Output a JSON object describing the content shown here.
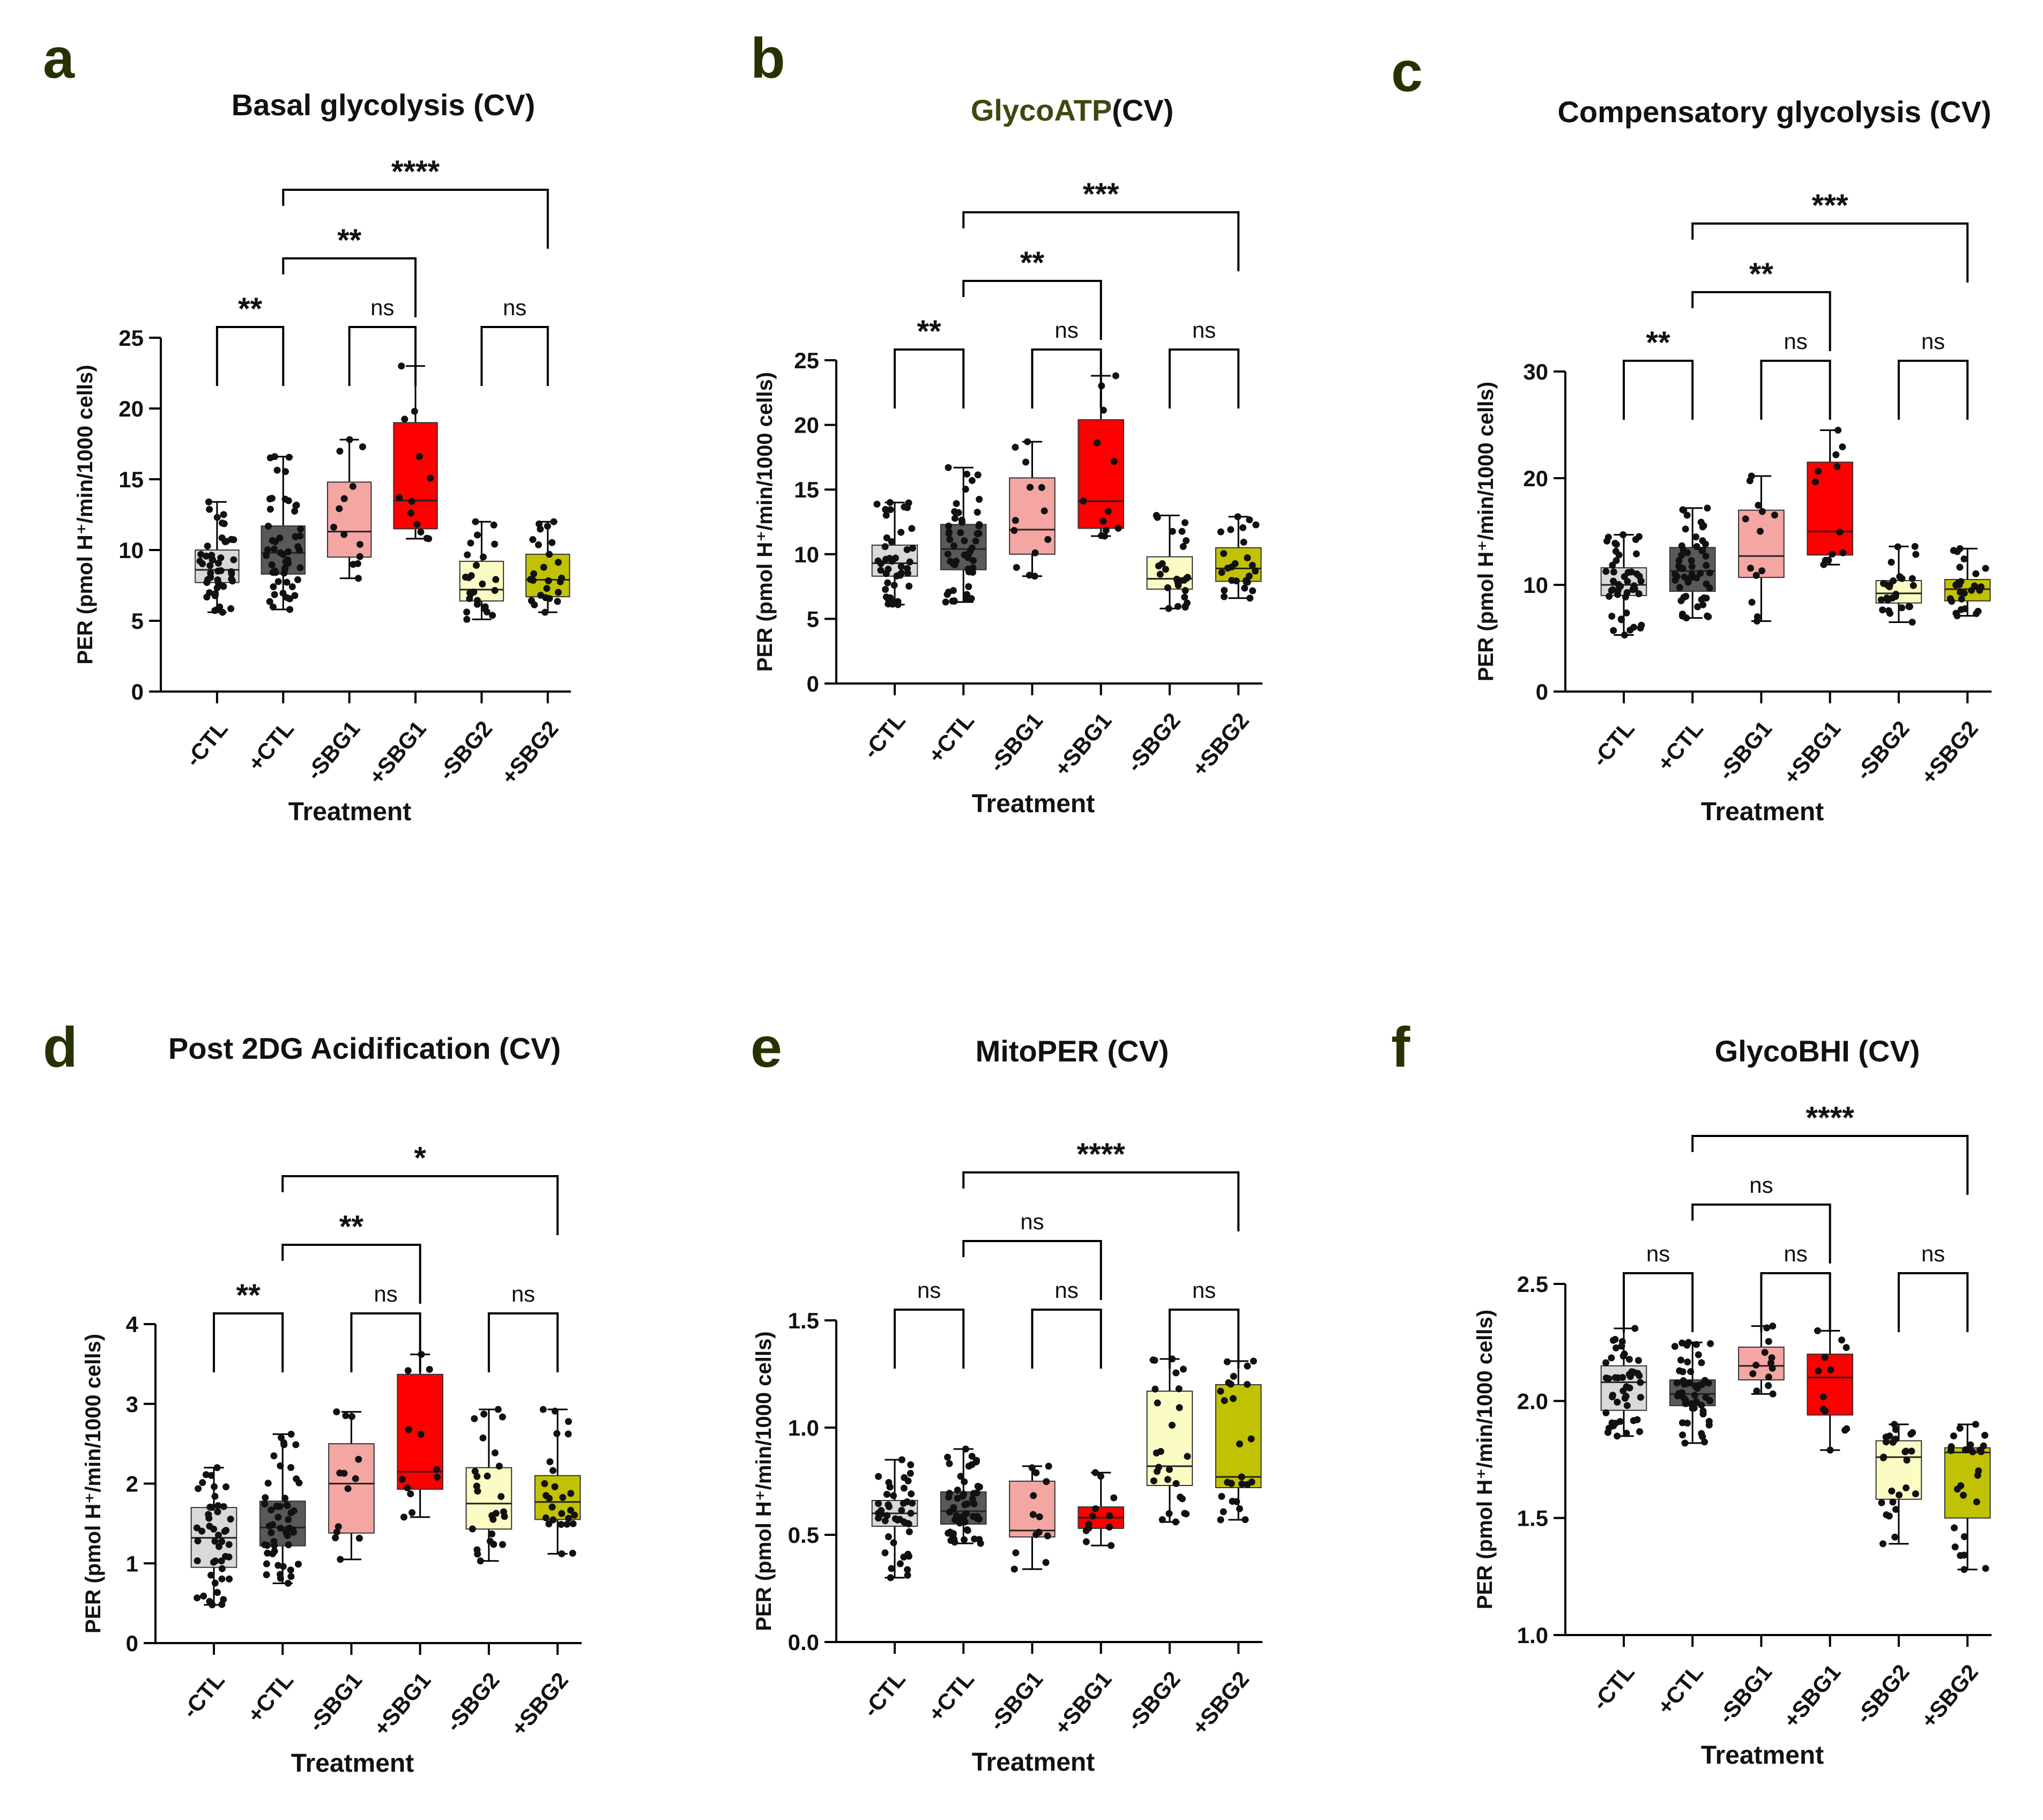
{
  "figure": {
    "categories": [
      "-CTL",
      "+CTL",
      "-SBG1",
      "+SBG1",
      "-SBG2",
      "+SBG2"
    ],
    "box_colors": [
      "#d9d9d9",
      "#595959",
      "#f4a6a3",
      "#ff0000",
      "#fbfbc4",
      "#c2c204"
    ],
    "dot_color": "#111111",
    "line_color": "#000000",
    "title_accent_color": "#3b4a10",
    "dot_counts": [
      46,
      52,
      13,
      12,
      26,
      26
    ]
  },
  "chart_data": [
    {
      "type": "box",
      "panel_label": "a",
      "title": "Basal glycolysis (CV)",
      "title_accent": "",
      "xlabel": "Treatment",
      "ylabel": "PER (pmol H⁺/min/1000 cells)",
      "ylim": [
        0,
        25
      ],
      "yticks": [
        0,
        5,
        10,
        15,
        20,
        25
      ],
      "ytick_labels": [
        "0",
        "5",
        "10",
        "15",
        "20",
        "25"
      ],
      "boxes": [
        {
          "category": "-CTL",
          "min": 5.6,
          "q1": 7.7,
          "median": 8.6,
          "q3": 10.0,
          "max": 13.4
        },
        {
          "category": "+CTL",
          "min": 5.8,
          "q1": 8.3,
          "median": 9.8,
          "q3": 11.7,
          "max": 16.6
        },
        {
          "category": "-SBG1",
          "min": 8.0,
          "q1": 9.5,
          "median": 11.3,
          "q3": 14.8,
          "max": 17.8
        },
        {
          "category": "+SBG1",
          "min": 10.8,
          "q1": 11.5,
          "median": 13.5,
          "q3": 19.0,
          "max": 23.0
        },
        {
          "category": "-SBG2",
          "min": 5.1,
          "q1": 6.4,
          "median": 7.2,
          "q3": 9.2,
          "max": 12.0
        },
        {
          "category": "+SBG2",
          "min": 5.6,
          "q1": 6.7,
          "median": 7.9,
          "q3": 9.7,
          "max": 12.0
        }
      ],
      "comparisons": [
        {
          "from": "-CTL",
          "to": "+CTL",
          "label": "**"
        },
        {
          "from": "-SBG1",
          "to": "+SBG1",
          "label": "ns"
        },
        {
          "from": "-SBG2",
          "to": "+SBG2",
          "label": "ns"
        },
        {
          "from": "+CTL",
          "to": "+SBG1",
          "label": "**"
        },
        {
          "from": "+CTL",
          "to": "+SBG2",
          "label": "****"
        }
      ]
    },
    {
      "type": "box",
      "panel_label": "b",
      "title": "(CV)",
      "title_accent": "GlycoATP",
      "xlabel": "Treatment",
      "ylabel": "PER (pmol H⁺/min/1000 cells)",
      "ylim": [
        0,
        25
      ],
      "yticks": [
        0,
        5,
        10,
        15,
        20,
        25
      ],
      "ytick_labels": [
        "0",
        "5",
        "10",
        "15",
        "20",
        "25"
      ],
      "boxes": [
        {
          "category": "-CTL",
          "min": 6.1,
          "q1": 8.3,
          "median": 9.3,
          "q3": 10.7,
          "max": 14.0
        },
        {
          "category": "+CTL",
          "min": 6.3,
          "q1": 8.8,
          "median": 10.4,
          "q3": 12.3,
          "max": 16.7
        },
        {
          "category": "-SBG1",
          "min": 8.3,
          "q1": 10.0,
          "median": 11.9,
          "q3": 15.9,
          "max": 18.7
        },
        {
          "category": "+SBG1",
          "min": 11.4,
          "q1": 12.0,
          "median": 14.1,
          "q3": 20.4,
          "max": 23.8
        },
        {
          "category": "-SBG2",
          "min": 5.8,
          "q1": 7.3,
          "median": 8.1,
          "q3": 9.8,
          "max": 13.0
        },
        {
          "category": "+SBG2",
          "min": 6.6,
          "q1": 7.9,
          "median": 8.9,
          "q3": 10.5,
          "max": 12.9
        }
      ],
      "comparisons": [
        {
          "from": "-CTL",
          "to": "+CTL",
          "label": "**"
        },
        {
          "from": "-SBG1",
          "to": "+SBG1",
          "label": "ns"
        },
        {
          "from": "-SBG2",
          "to": "+SBG2",
          "label": "ns"
        },
        {
          "from": "+CTL",
          "to": "+SBG1",
          "label": "**"
        },
        {
          "from": "+CTL",
          "to": "+SBG2",
          "label": "***"
        }
      ]
    },
    {
      "type": "box",
      "panel_label": "c",
      "title": "Compensatory glycolysis (CV)",
      "title_accent": "",
      "xlabel": "Treatment",
      "ylabel": "PER (pmol H⁺/min/1000 cells)",
      "ylim": [
        0,
        30
      ],
      "yticks": [
        0,
        10,
        20,
        30
      ],
      "ytick_labels": [
        "0",
        "10",
        "20",
        "30"
      ],
      "boxes": [
        {
          "category": "-CTL",
          "min": 5.3,
          "q1": 9.0,
          "median": 10.0,
          "q3": 11.6,
          "max": 14.7
        },
        {
          "category": "+CTL",
          "min": 6.9,
          "q1": 9.4,
          "median": 11.3,
          "q3": 13.5,
          "max": 17.2
        },
        {
          "category": "-SBG1",
          "min": 6.6,
          "q1": 10.7,
          "median": 12.7,
          "q3": 17.0,
          "max": 20.2
        },
        {
          "category": "+SBG1",
          "min": 11.9,
          "q1": 12.8,
          "median": 15.0,
          "q3": 21.5,
          "max": 24.5
        },
        {
          "category": "-SBG2",
          "min": 6.5,
          "q1": 8.3,
          "median": 9.2,
          "q3": 10.4,
          "max": 13.6
        },
        {
          "category": "+SBG2",
          "min": 7.1,
          "q1": 8.5,
          "median": 9.6,
          "q3": 10.5,
          "max": 13.4
        }
      ],
      "comparisons": [
        {
          "from": "-CTL",
          "to": "+CTL",
          "label": "**"
        },
        {
          "from": "-SBG1",
          "to": "+SBG1",
          "label": "ns"
        },
        {
          "from": "-SBG2",
          "to": "+SBG2",
          "label": "ns"
        },
        {
          "from": "+CTL",
          "to": "+SBG1",
          "label": "**"
        },
        {
          "from": "+CTL",
          "to": "+SBG2",
          "label": "***"
        }
      ]
    },
    {
      "type": "box",
      "panel_label": "d",
      "title": "Post 2DG Acidification (CV)",
      "title_accent": "",
      "xlabel": "Treatment",
      "ylabel": "PER (pmol H⁺/min/1000 cells)",
      "ylim": [
        0,
        4
      ],
      "yticks": [
        0,
        1,
        2,
        3,
        4
      ],
      "ytick_labels": [
        "0",
        "1",
        "2",
        "3",
        "4"
      ],
      "boxes": [
        {
          "category": "-CTL",
          "min": 0.48,
          "q1": 0.95,
          "median": 1.32,
          "q3": 1.7,
          "max": 2.2
        },
        {
          "category": "+CTL",
          "min": 0.75,
          "q1": 1.22,
          "median": 1.45,
          "q3": 1.78,
          "max": 2.62
        },
        {
          "category": "-SBG1",
          "min": 1.05,
          "q1": 1.38,
          "median": 2.0,
          "q3": 2.5,
          "max": 2.9
        },
        {
          "category": "+SBG1",
          "min": 1.58,
          "q1": 1.93,
          "median": 2.15,
          "q3": 3.37,
          "max": 3.62
        },
        {
          "category": "-SBG2",
          "min": 1.03,
          "q1": 1.43,
          "median": 1.75,
          "q3": 2.2,
          "max": 2.93
        },
        {
          "category": "+SBG2",
          "min": 1.12,
          "q1": 1.55,
          "median": 1.77,
          "q3": 2.1,
          "max": 2.93
        }
      ],
      "comparisons": [
        {
          "from": "-CTL",
          "to": "+CTL",
          "label": "**"
        },
        {
          "from": "-SBG1",
          "to": "+SBG1",
          "label": "ns"
        },
        {
          "from": "-SBG2",
          "to": "+SBG2",
          "label": "ns"
        },
        {
          "from": "+CTL",
          "to": "+SBG1",
          "label": "**"
        },
        {
          "from": "+CTL",
          "to": "+SBG2",
          "label": "*"
        }
      ]
    },
    {
      "type": "box",
      "panel_label": "e",
      "title": "MitoPER (CV)",
      "title_accent": "",
      "xlabel": "Treatment",
      "ylabel": "PER (pmol H⁺/min/1000 cells)",
      "ylim": [
        0,
        1.5
      ],
      "yticks": [
        0,
        0.5,
        1.0,
        1.5
      ],
      "ytick_labels": [
        "0.0",
        "0.5",
        "1.0",
        "1.5"
      ],
      "boxes": [
        {
          "category": "-CTL",
          "min": 0.3,
          "q1": 0.54,
          "median": 0.6,
          "q3": 0.66,
          "max": 0.85
        },
        {
          "category": "+CTL",
          "min": 0.46,
          "q1": 0.55,
          "median": 0.61,
          "q3": 0.7,
          "max": 0.9
        },
        {
          "category": "-SBG1",
          "min": 0.34,
          "q1": 0.49,
          "median": 0.52,
          "q3": 0.75,
          "max": 0.82
        },
        {
          "category": "+SBG1",
          "min": 0.45,
          "q1": 0.53,
          "median": 0.58,
          "q3": 0.63,
          "max": 0.79
        },
        {
          "category": "-SBG2",
          "min": 0.56,
          "q1": 0.73,
          "median": 0.82,
          "q3": 1.17,
          "max": 1.32
        },
        {
          "category": "+SBG2",
          "min": 0.57,
          "q1": 0.72,
          "median": 0.77,
          "q3": 1.2,
          "max": 1.31
        }
      ],
      "comparisons": [
        {
          "from": "-CTL",
          "to": "+CTL",
          "label": "ns"
        },
        {
          "from": "-SBG1",
          "to": "+SBG1",
          "label": "ns"
        },
        {
          "from": "-SBG2",
          "to": "+SBG2",
          "label": "ns"
        },
        {
          "from": "+CTL",
          "to": "+SBG1",
          "label": "ns"
        },
        {
          "from": "+CTL",
          "to": "+SBG2",
          "label": "****"
        }
      ]
    },
    {
      "type": "box",
      "panel_label": "f",
      "title": "GlycoBHI (CV)",
      "title_accent": "",
      "xlabel": "Treatment",
      "ylabel": "PER (pmol H⁺/min/1000 cells)",
      "ylim": [
        1.0,
        2.5
      ],
      "yticks": [
        1.0,
        1.5,
        2.0,
        2.5
      ],
      "ytick_labels": [
        "1.0",
        "1.5",
        "2.0",
        "2.5"
      ],
      "boxes": [
        {
          "category": "-CTL",
          "min": 1.85,
          "q1": 1.96,
          "median": 2.08,
          "q3": 2.15,
          "max": 2.31
        },
        {
          "category": "+CTL",
          "min": 1.82,
          "q1": 1.98,
          "median": 2.03,
          "q3": 2.09,
          "max": 2.25
        },
        {
          "category": "-SBG1",
          "min": 2.03,
          "q1": 2.09,
          "median": 2.15,
          "q3": 2.23,
          "max": 2.32
        },
        {
          "category": "+SBG1",
          "min": 1.79,
          "q1": 1.94,
          "median": 2.1,
          "q3": 2.2,
          "max": 2.3
        },
        {
          "category": "-SBG2",
          "min": 1.39,
          "q1": 1.58,
          "median": 1.76,
          "q3": 1.83,
          "max": 1.9
        },
        {
          "category": "+SBG2",
          "min": 1.28,
          "q1": 1.5,
          "median": 1.78,
          "q3": 1.8,
          "max": 1.9
        }
      ],
      "comparisons": [
        {
          "from": "-CTL",
          "to": "+CTL",
          "label": "ns"
        },
        {
          "from": "-SBG1",
          "to": "+SBG1",
          "label": "ns"
        },
        {
          "from": "-SBG2",
          "to": "+SBG2",
          "label": "ns"
        },
        {
          "from": "+CTL",
          "to": "+SBG1",
          "label": "ns"
        },
        {
          "from": "+CTL",
          "to": "+SBG2",
          "label": "****"
        }
      ]
    }
  ]
}
